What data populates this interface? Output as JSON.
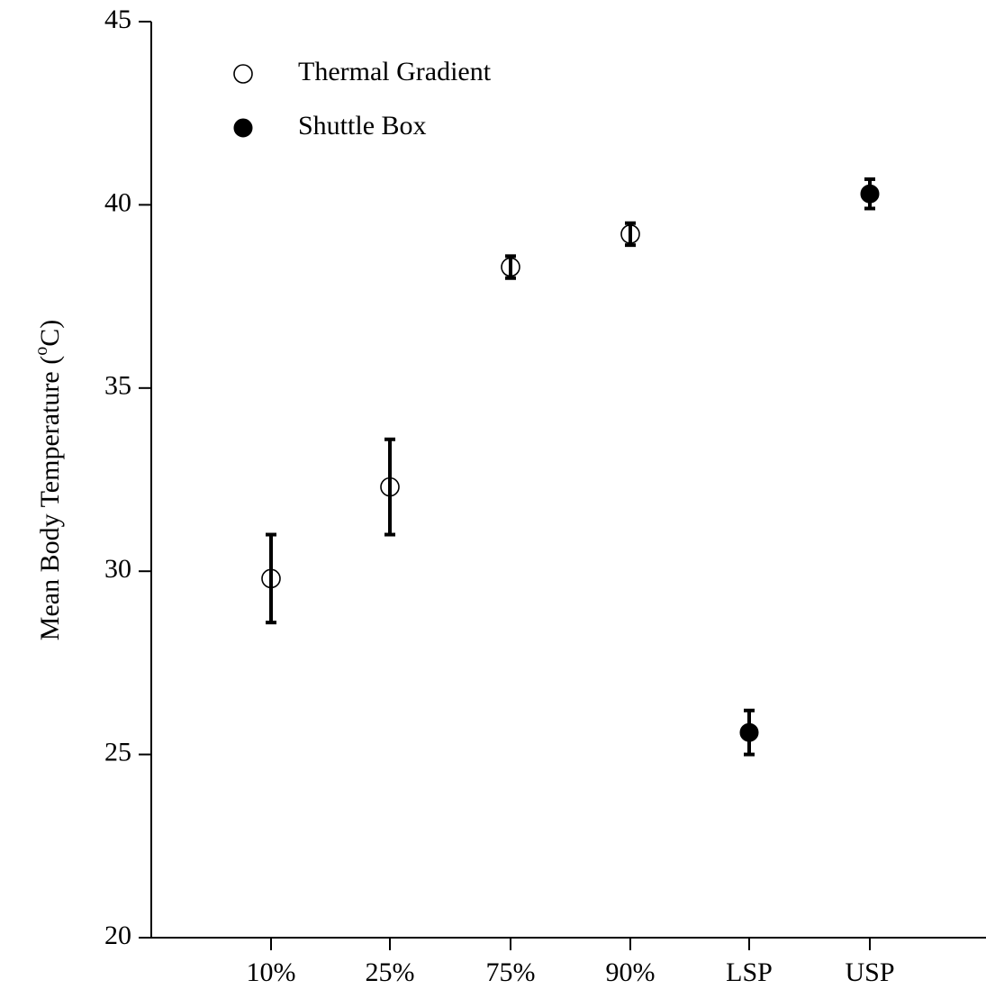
{
  "chart_data": {
    "type": "scatter",
    "title": "",
    "xlabel": "",
    "ylabel": "Mean Body Temperature (",
    "ylabel_sup": "o",
    "ylabel_suffix": "C)",
    "categories": [
      "10%",
      "25%",
      "75%",
      "90%",
      "LSP",
      "USP"
    ],
    "ylim": [
      20,
      45
    ],
    "yticks": [
      20,
      25,
      30,
      35,
      40,
      45
    ],
    "grid": false,
    "legend_position": "top-left",
    "series": [
      {
        "name": "Thermal Gradient",
        "marker": "open-circle",
        "color": "#000000",
        "points": [
          {
            "category": "10%",
            "y": 29.8,
            "err_low": 28.6,
            "err_high": 31.0
          },
          {
            "category": "25%",
            "y": 32.3,
            "err_low": 31.0,
            "err_high": 33.6
          },
          {
            "category": "75%",
            "y": 38.3,
            "err_low": 38.0,
            "err_high": 38.6
          },
          {
            "category": "90%",
            "y": 39.2,
            "err_low": 38.9,
            "err_high": 39.5
          }
        ]
      },
      {
        "name": "Shuttle Box",
        "marker": "filled-circle",
        "color": "#000000",
        "points": [
          {
            "category": "LSP",
            "y": 25.6,
            "err_low": 25.0,
            "err_high": 26.2
          },
          {
            "category": "USP",
            "y": 40.3,
            "err_low": 39.9,
            "err_high": 40.7
          }
        ]
      }
    ]
  }
}
